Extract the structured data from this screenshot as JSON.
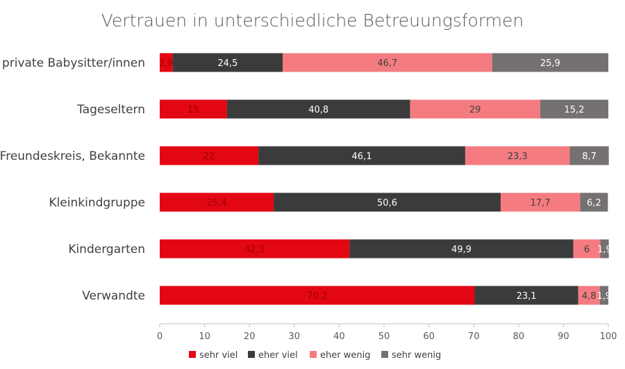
{
  "chart_data": {
    "type": "bar",
    "orientation": "horizontal",
    "stacked": true,
    "title": "Vertrauen in unterschiedliche Betreuungsformen",
    "xlabel": "",
    "ylabel": "",
    "xlim": [
      0,
      100
    ],
    "x_ticks": [
      "0",
      "10",
      "20",
      "30",
      "40",
      "50",
      "60",
      "70",
      "80",
      "90",
      "100"
    ],
    "grid": false,
    "legend_position": "bottom",
    "categories": [
      "private Babysitter/innen",
      "Tageseltern",
      "Freundeskreis, Bekannte",
      "Kleinkindgruppe",
      "Kindergarten",
      "Verwandte"
    ],
    "series": [
      {
        "name": "sehr viel",
        "color": "#e30613",
        "label_color": "#a00000",
        "values": [
          2.9,
          15,
          22,
          25.4,
          42.3,
          70.2
        ],
        "labels": [
          "2,9",
          "15",
          "22",
          "25,4",
          "42,3",
          "70,2"
        ]
      },
      {
        "name": "eher viel",
        "color": "#3b3b3b",
        "label_color": "#ffffff",
        "values": [
          24.5,
          40.8,
          46.1,
          50.6,
          49.9,
          23.1
        ],
        "labels": [
          "24,5",
          "40,8",
          "46,1",
          "50,6",
          "49,9",
          "23,1"
        ]
      },
      {
        "name": "eher wenig",
        "color": "#f47c80",
        "label_color": "#404040",
        "values": [
          46.7,
          29,
          23.3,
          17.7,
          6,
          4.8
        ],
        "labels": [
          "46,7",
          "29",
          "23,3",
          "17,7",
          "6",
          "4,8"
        ]
      },
      {
        "name": "sehr wenig",
        "color": "#767171",
        "label_color": "#ffffff",
        "values": [
          25.9,
          15.2,
          8.7,
          6.2,
          1.9,
          1.9
        ],
        "labels": [
          "25,9",
          "15,2",
          "8,7",
          "6,2",
          "1,9",
          "1,9"
        ]
      }
    ]
  }
}
